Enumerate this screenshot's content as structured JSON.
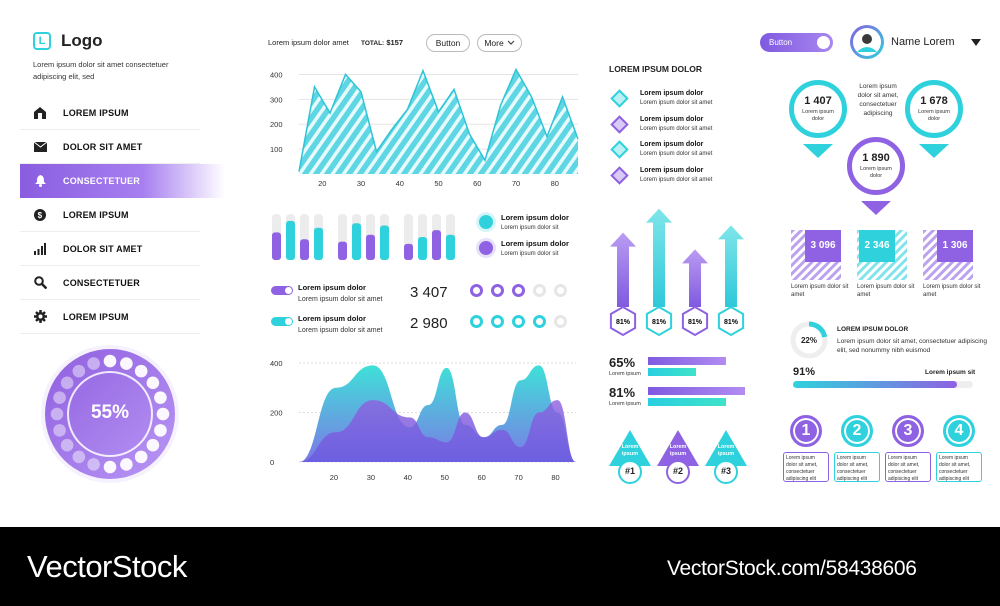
{
  "brand": {
    "logo_letter": "L",
    "logo_text": "Logo",
    "tagline_1": "Lorem ipsum dolor sit amet consectetuer",
    "tagline_2": "adipiscing elit, sed"
  },
  "sidebar": {
    "items": [
      {
        "label": "LOREM IPSUM",
        "icon": "home-icon"
      },
      {
        "label": "DOLOR SIT AMET",
        "icon": "mail-icon"
      },
      {
        "label": "CONSECTETUER",
        "icon": "bell-icon",
        "active": true
      },
      {
        "label": "LOREM IPSUM",
        "icon": "dollar-icon"
      },
      {
        "label": "DOLOR SIT AMET",
        "icon": "bar-chart-icon"
      },
      {
        "label": "CONSECTETUER",
        "icon": "search-icon"
      },
      {
        "label": "LOREM IPSUM",
        "icon": "gear-icon"
      }
    ]
  },
  "progress_dial": {
    "label": "55%",
    "value": 55
  },
  "header": {
    "text": "Lorem ipsum dolor amet",
    "total_label": "TOTAL:",
    "total_value": "$157",
    "button_label": "Button",
    "more_label": "More"
  },
  "top_right": {
    "toggle_label": "Button",
    "user_name": "Name Lorem"
  },
  "chart_data": [
    {
      "type": "area",
      "name": "striped-area-chart",
      "x": [
        14,
        18,
        22,
        26,
        30,
        34,
        38,
        42,
        46,
        50,
        54,
        58,
        62,
        66,
        70,
        74,
        78,
        82,
        86
      ],
      "y": [
        10,
        350,
        245,
        400,
        330,
        90,
        180,
        260,
        415,
        250,
        340,
        160,
        55,
        275,
        420,
        310,
        150,
        310,
        140
      ],
      "xticks": [
        20,
        30,
        40,
        50,
        60,
        70,
        80
      ],
      "yticks": [
        100,
        200,
        300,
        400
      ],
      "ylim": [
        0,
        450
      ]
    },
    {
      "type": "area",
      "name": "wave-area-chart",
      "xticks": [
        20,
        30,
        40,
        50,
        60,
        70,
        80
      ],
      "yticks": [
        0,
        200,
        400
      ],
      "ylim": [
        0,
        420
      ],
      "series": [
        {
          "x": [
            10,
            20,
            30,
            40,
            45,
            50,
            55,
            60,
            65,
            70,
            75,
            80,
            85
          ],
          "y": [
            0,
            300,
            390,
            140,
            230,
            380,
            150,
            100,
            150,
            330,
            390,
            200,
            0
          ]
        },
        {
          "x": [
            10,
            20,
            30,
            40,
            45,
            50,
            55,
            60,
            65,
            70,
            75,
            80,
            85
          ],
          "y": [
            0,
            120,
            250,
            180,
            100,
            80,
            200,
            100,
            130,
            60,
            200,
            250,
            0
          ]
        }
      ]
    },
    {
      "type": "bar",
      "name": "grouped-mini-bars",
      "values": [
        60,
        85,
        45,
        70,
        40,
        80,
        55,
        75,
        35,
        50,
        65,
        55,
        40,
        30,
        70
      ],
      "colors": [
        "p",
        "t",
        "p",
        "t",
        "p",
        "t",
        "p",
        "t",
        "p",
        "t",
        "p",
        "t",
        "p",
        "t",
        "p"
      ]
    }
  ],
  "bar_legend": [
    {
      "title": "Lorem ipsum dolor",
      "sub": "Lorem ipsum dolor sit",
      "color": "#2fd2dc"
    },
    {
      "title": "Lorem ipsum dolor",
      "sub": "Lorem ipsum dolor sit",
      "color": "#8e62e2"
    }
  ],
  "toggle_rows": [
    {
      "title": "Lorem ipsum dolor",
      "sub": "Lorem ipsum dolor sit amet",
      "value": "3 407",
      "filled": 3,
      "color": "#8e62e2"
    },
    {
      "title": "Lorem ipsum dolor",
      "sub": "Lorem ipsum dolor sit amet",
      "value": "2 980",
      "filled": 4,
      "color": "#2fd2dc"
    }
  ],
  "mid_column": {
    "title": "LOREM IPSUM DOLOR",
    "list": [
      {
        "title": "Lorem ipsum dolor",
        "sub": "Lorem ipsum dolor sit amet"
      },
      {
        "title": "Lorem ipsum dolor",
        "sub": "Lorem ipsum dolor sit amet"
      },
      {
        "title": "Lorem ipsum dolor",
        "sub": "Lorem ipsum dolor sit amet"
      },
      {
        "title": "Lorem ipsum dolor",
        "sub": "Lorem ipsum dolor sit amet"
      }
    ],
    "arrows": [
      {
        "label": "81%",
        "height": 0.62
      },
      {
        "label": "81%",
        "height": 0.82
      },
      {
        "label": "81%",
        "height": 0.48
      },
      {
        "label": "81%",
        "height": 0.68
      }
    ],
    "percent_bars": [
      {
        "label": "65%",
        "sub": "Lorem ipsum",
        "purple": 0.65,
        "teal": 0.4
      },
      {
        "label": "81%",
        "sub": "Lorem ipsum",
        "purple": 0.81,
        "teal": 0.65
      }
    ],
    "triangles": [
      {
        "label": "Lorem ipsum",
        "tag": "#1"
      },
      {
        "label": "Lorem ipsum",
        "tag": "#2"
      },
      {
        "label": "Lorem ipsum",
        "tag": "#3"
      }
    ]
  },
  "right_column": {
    "pins": [
      {
        "value": "1 407",
        "sub": "Lorem ipsum dolor"
      },
      {
        "value": "1 678",
        "sub": "Lorem ipsum dolor"
      },
      {
        "value": "1 890",
        "sub": "Lorem ipsum dolor"
      }
    ],
    "pin_text": "Lorem ipsum dolor sit amet, consectetuer adipiscing",
    "squares": [
      {
        "value": "3 096",
        "sub": "Lorem ipsum dolor sit amet"
      },
      {
        "value": "2 346",
        "sub": "Lorem ipsum dolor sit amet"
      },
      {
        "value": "1 306",
        "sub": "Lorem ipsum dolor sit amet"
      }
    ],
    "donut": {
      "label": "22%",
      "value": 22,
      "title": "LOREM IPSUM DOLOR",
      "text": "Lorem ipsum dolor sit amet, consectetuer adipiscing elit, sed nonummy nibh euismod"
    },
    "progress": {
      "label": "91%",
      "value": 91,
      "text": "Lorem ipsum sit"
    },
    "steps": [
      {
        "num": "1",
        "text": "Lorem ipsum dolor sit amet, consectetuer adipiscing elit"
      },
      {
        "num": "2",
        "text": "Lorem ipsum dolor sit amet, consectetuer adipiscing elit"
      },
      {
        "num": "3",
        "text": "Lorem ipsum dolor sit amet, consectetuer adipiscing elit"
      },
      {
        "num": "4",
        "text": "Lorem ipsum dolor sit amet, consectetuer adipiscing elit"
      }
    ]
  },
  "footer": {
    "brand": "VectorStock",
    "url": "VectorStock.com/58438606"
  }
}
